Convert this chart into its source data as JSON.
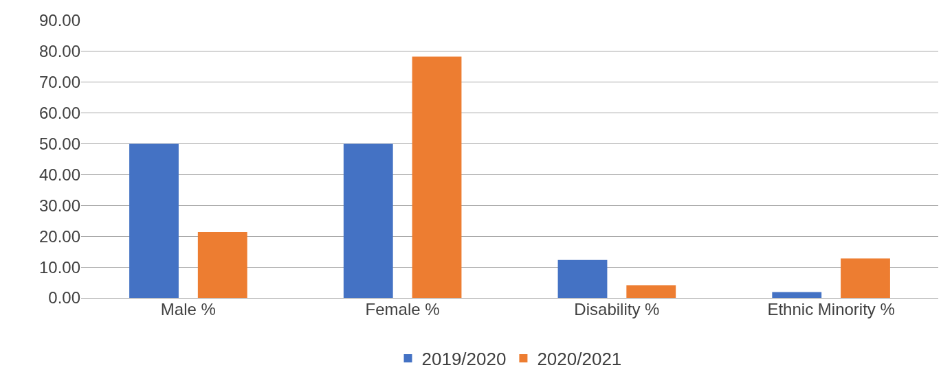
{
  "chart_data": {
    "type": "bar",
    "categories": [
      "Male %",
      "Female %",
      "Disability %",
      "Ethnic Minority %"
    ],
    "series": [
      {
        "name": "2019/2020",
        "color": "#4472c4",
        "values": [
          50,
          50,
          12.3,
          1.9
        ]
      },
      {
        "name": "2020/2021",
        "color": "#ed7d31",
        "values": [
          21.4,
          78.3,
          4.1,
          12.8
        ]
      }
    ],
    "ylim": [
      0,
      90
    ],
    "yticks": [
      {
        "value": 0,
        "label": "0.00"
      },
      {
        "value": 10,
        "label": "10.00"
      },
      {
        "value": 20,
        "label": "20.00"
      },
      {
        "value": 30,
        "label": "30.00"
      },
      {
        "value": 40,
        "label": "40.00"
      },
      {
        "value": 50,
        "label": "50.00"
      },
      {
        "value": 60,
        "label": "60.00"
      },
      {
        "value": 70,
        "label": "70.00"
      },
      {
        "value": 80,
        "label": "80.00"
      },
      {
        "value": 90,
        "label": "90.00"
      }
    ],
    "grid": "y",
    "legend": "bottom"
  }
}
